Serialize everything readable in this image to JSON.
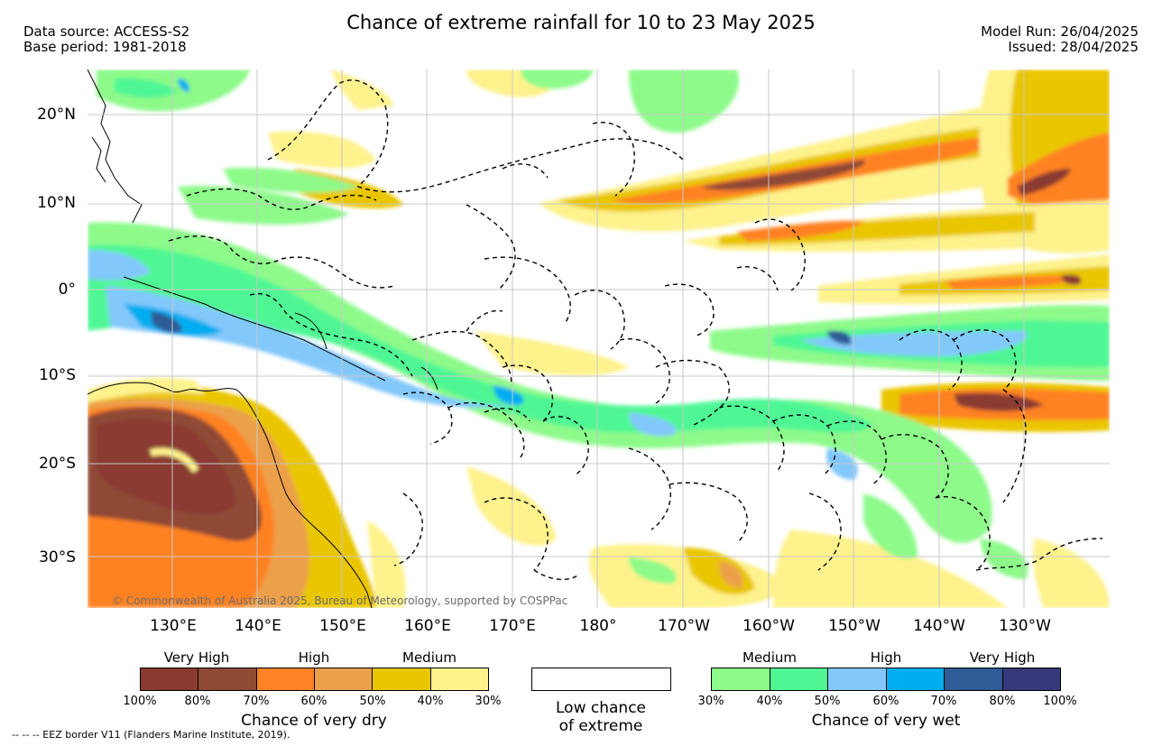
{
  "title": "Chance of extreme rainfall for 10 to 23 May 2025",
  "meta_left": {
    "source": "Data source: ACCESS-S2",
    "base": "Base period: 1981-2018"
  },
  "meta_right": {
    "run": "Model Run: 26/04/2025",
    "issued": "Issued: 28/04/2025"
  },
  "lat_labels": [
    "20°N",
    "10°N",
    "0°",
    "10°S",
    "20°S",
    "30°S"
  ],
  "lon_labels": [
    "130°E",
    "140°E",
    "150°E",
    "160°E",
    "170°E",
    "180°",
    "170°W",
    "160°W",
    "150°W",
    "140°W",
    "130°W"
  ],
  "copyright": "© Commonwealth of Australia 2025, Bureau of Meteorology, supported by COSPPac",
  "legend_dry": {
    "categories": [
      "Very High",
      "High",
      "Medium"
    ],
    "ticks": [
      "100%",
      "80%",
      "70%",
      "60%",
      "50%",
      "40%",
      "30%"
    ],
    "colors": [
      "#8a3b30",
      "#8f4a34",
      "#ff8224",
      "#eba04a",
      "#e9c600",
      "#fef28c"
    ],
    "caption": "Chance of very dry"
  },
  "legend_low": {
    "line1": "Low chance",
    "line2": "of extreme"
  },
  "legend_wet": {
    "categories": [
      "Medium",
      "High",
      "Very High"
    ],
    "ticks": [
      "30%",
      "40%",
      "50%",
      "60%",
      "70%",
      "80%",
      "100%"
    ],
    "colors": [
      "#8dfa8a",
      "#4ff794",
      "#82c8fb",
      "#00adf0",
      "#2f5b96",
      "#38397a"
    ],
    "caption": "Chance of very wet"
  },
  "eez_note": "-- -- -- EEZ border V11 (Flanders Marine Institute, 2019)."
}
